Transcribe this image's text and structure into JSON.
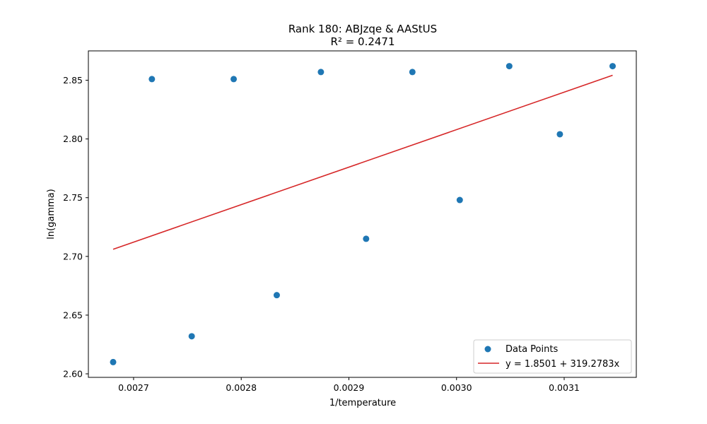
{
  "chart_data": {
    "type": "scatter",
    "title": "Rank 180: ABJzqe & AAStUS",
    "subtitle": "R² = 0.2471",
    "xlabel": "1/temperature",
    "ylabel": "ln(gamma)",
    "xlim": [
      0.002658,
      0.003167
    ],
    "ylim": [
      2.597,
      2.875
    ],
    "x_ticks": [
      0.0027,
      0.0028,
      0.0029,
      0.003,
      0.0031
    ],
    "x_tick_labels": [
      "0.0027",
      "0.0028",
      "0.0029",
      "0.0030",
      "0.0031"
    ],
    "y_ticks": [
      2.6,
      2.65,
      2.7,
      2.75,
      2.8,
      2.85
    ],
    "y_tick_labels": [
      "2.60",
      "2.65",
      "2.70",
      "2.75",
      "2.80",
      "2.85"
    ],
    "grid": false,
    "legend_position": "lower-right",
    "series": [
      {
        "name": "Data Points",
        "kind": "scatter",
        "color": "#1f77b4",
        "points": [
          {
            "x": 0.002681,
            "y": 2.61
          },
          {
            "x": 0.002717,
            "y": 2.851
          },
          {
            "x": 0.002754,
            "y": 2.632
          },
          {
            "x": 0.002793,
            "y": 2.851
          },
          {
            "x": 0.002833,
            "y": 2.667
          },
          {
            "x": 0.002874,
            "y": 2.857
          },
          {
            "x": 0.002916,
            "y": 2.715
          },
          {
            "x": 0.002959,
            "y": 2.857
          },
          {
            "x": 0.003003,
            "y": 2.748
          },
          {
            "x": 0.003049,
            "y": 2.862
          },
          {
            "x": 0.003096,
            "y": 2.804
          },
          {
            "x": 0.003145,
            "y": 2.862
          }
        ]
      },
      {
        "name": "y = 1.8501 + 319.2783x",
        "kind": "line",
        "color": "#d62728",
        "intercept": 1.8501,
        "slope": 319.2783,
        "x_range": [
          0.002681,
          0.003145
        ]
      }
    ]
  }
}
